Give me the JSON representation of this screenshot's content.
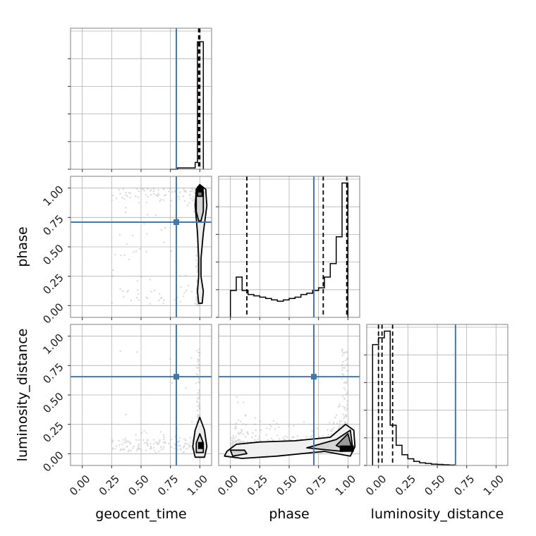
{
  "chart_data": {
    "type": "corner",
    "parameters": [
      "geocent_time",
      "phase",
      "luminosity_distance"
    ],
    "axis_range": [
      -0.1,
      1.1
    ],
    "tick_values": [
      0.0,
      0.25,
      0.5,
      0.75,
      1.0
    ],
    "tick_labels": [
      "0.00",
      "0.25",
      "0.50",
      "0.75",
      "1.00"
    ],
    "grid": true,
    "truths": {
      "color": "#4477aa",
      "values": [
        0.8,
        0.71,
        0.655
      ]
    },
    "quantiles": {
      "color": "#000000",
      "geocent_time": [
        0.99,
        1.0
      ],
      "phase": [
        0.14,
        0.79,
        0.99
      ],
      "luminosity_distance": [
        0.0,
        0.03,
        0.12
      ]
    },
    "histograms": {
      "geocent_time": {
        "bin_edges": [
          0.75,
          0.81,
          0.96,
          0.98,
          1.03
        ],
        "counts": [
          0.0,
          0.05,
          0.25,
          4.7
        ],
        "ymax": 5.2
      },
      "phase": {
        "bin_edges": [
          0.0,
          0.05,
          0.1,
          0.15,
          0.2,
          0.25,
          0.3,
          0.35,
          0.4,
          0.45,
          0.5,
          0.55,
          0.6,
          0.65,
          0.7,
          0.75,
          0.8,
          0.85,
          0.9,
          0.95,
          1.0
        ],
        "counts": [
          0.2,
          0.3,
          0.2,
          0.17,
          0.16,
          0.15,
          0.14,
          0.13,
          0.12,
          0.13,
          0.14,
          0.15,
          0.17,
          0.18,
          0.2,
          0.22,
          0.3,
          0.4,
          0.6,
          1.0
        ],
        "ymax": 1.05
      },
      "luminosity_distance": {
        "bin_edges": [
          -0.05,
          0.0,
          0.05,
          0.1,
          0.15,
          0.2,
          0.25,
          0.3,
          0.35,
          0.4,
          0.45,
          0.5,
          0.55,
          0.6,
          0.65
        ],
        "counts": [
          0.9,
          0.95,
          1.0,
          0.3,
          0.15,
          0.08,
          0.05,
          0.03,
          0.02,
          0.015,
          0.01,
          0.008,
          0.005,
          0.003
        ],
        "ymax": 1.05
      }
    }
  }
}
